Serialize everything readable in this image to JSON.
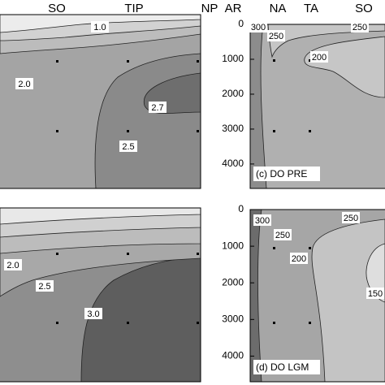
{
  "chart_data": [
    {
      "type": "contour",
      "region_labels": [
        "SO",
        "TIP",
        "NP"
      ],
      "contour_labels": [
        {
          "value": 1,
          "label": "1.0"
        },
        {
          "value": 2,
          "label": "2.0"
        },
        2.7,
        2.5
      ]
    },
    {
      "type": "contour",
      "panel_label": "(c) DO PRE",
      "region_labels": [
        "AR",
        "NA",
        "TA",
        "SO"
      ],
      "ylim": [
        0,
        4700
      ],
      "yticks": [
        0,
        1000,
        2000,
        3000,
        4000
      ],
      "contour_labels": [
        300,
        250,
        250,
        200
      ]
    },
    {
      "type": "contour",
      "contour_labels": [
        {
          "value": 2,
          "label": "2.0"
        },
        2.5,
        {
          "value": 3,
          "label": "3.0"
        }
      ]
    },
    {
      "type": "contour",
      "panel_label": "(d) DO LGM",
      "ylim": [
        0,
        4700
      ],
      "yticks": [
        0,
        1000,
        2000,
        3000,
        4000
      ],
      "contour_labels": [
        300,
        250,
        250,
        200,
        150
      ]
    }
  ]
}
